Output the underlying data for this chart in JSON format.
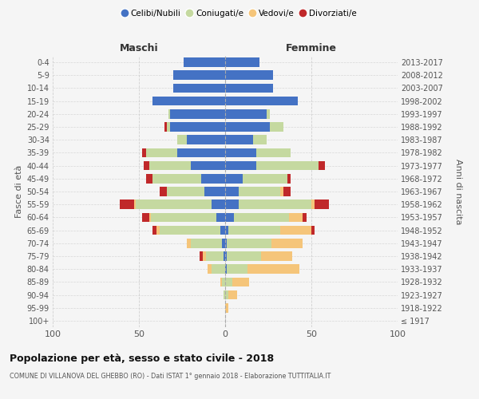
{
  "age_groups": [
    "100+",
    "95-99",
    "90-94",
    "85-89",
    "80-84",
    "75-79",
    "70-74",
    "65-69",
    "60-64",
    "55-59",
    "50-54",
    "45-49",
    "40-44",
    "35-39",
    "30-34",
    "25-29",
    "20-24",
    "15-19",
    "10-14",
    "5-9",
    "0-4"
  ],
  "birth_years": [
    "≤ 1917",
    "1918-1922",
    "1923-1927",
    "1928-1932",
    "1933-1937",
    "1938-1942",
    "1943-1947",
    "1948-1952",
    "1953-1957",
    "1958-1962",
    "1963-1967",
    "1968-1972",
    "1973-1977",
    "1978-1982",
    "1983-1987",
    "1988-1992",
    "1993-1997",
    "1998-2002",
    "2003-2007",
    "2008-2012",
    "2013-2017"
  ],
  "colors": {
    "celibi": "#4472c4",
    "coniugati": "#c5d9a0",
    "vedovi": "#f5c57a",
    "divorziati": "#c0282a"
  },
  "maschi": {
    "celibi": [
      0,
      0,
      0,
      0,
      0,
      1,
      2,
      3,
      5,
      8,
      12,
      14,
      20,
      28,
      22,
      32,
      32,
      42,
      30,
      30,
      24
    ],
    "coniugati": [
      0,
      0,
      1,
      2,
      8,
      10,
      18,
      35,
      38,
      44,
      22,
      28,
      24,
      18,
      6,
      2,
      1,
      0,
      0,
      0,
      0
    ],
    "vedovi": [
      0,
      0,
      0,
      1,
      2,
      2,
      2,
      2,
      1,
      1,
      0,
      0,
      0,
      0,
      0,
      0,
      0,
      0,
      0,
      0,
      0
    ],
    "divorziati": [
      0,
      0,
      0,
      0,
      0,
      2,
      0,
      2,
      4,
      8,
      4,
      4,
      3,
      2,
      0,
      1,
      0,
      0,
      0,
      0,
      0
    ]
  },
  "femmine": {
    "celibi": [
      0,
      0,
      0,
      0,
      1,
      1,
      1,
      2,
      5,
      8,
      8,
      10,
      18,
      18,
      16,
      26,
      24,
      42,
      28,
      28,
      20
    ],
    "coniugati": [
      0,
      0,
      2,
      4,
      12,
      20,
      26,
      30,
      32,
      42,
      24,
      26,
      36,
      20,
      8,
      8,
      2,
      0,
      0,
      0,
      0
    ],
    "vedovi": [
      0,
      2,
      5,
      10,
      30,
      18,
      18,
      18,
      8,
      2,
      2,
      0,
      0,
      0,
      0,
      0,
      0,
      0,
      0,
      0,
      0
    ],
    "divorziati": [
      0,
      0,
      0,
      0,
      0,
      0,
      0,
      2,
      2,
      8,
      4,
      2,
      4,
      0,
      0,
      0,
      0,
      0,
      0,
      0,
      0
    ]
  },
  "title": "Popolazione per età, sesso e stato civile - 2018",
  "subtitle": "COMUNE DI VILLANOVA DEL GHEBBO (RO) - Dati ISTAT 1° gennaio 2018 - Elaborazione TUTTITALIA.IT",
  "ylabel_left": "Fasce di età",
  "ylabel_right": "Anni di nascita",
  "xlabel_left": "Maschi",
  "xlabel_right": "Femmine",
  "xlim": 100,
  "bg_color": "#f5f5f5",
  "grid_color": "#cccccc",
  "legend_labels": [
    "Celibi/Nubili",
    "Coniugati/e",
    "Vedovi/e",
    "Divorziati/e"
  ]
}
